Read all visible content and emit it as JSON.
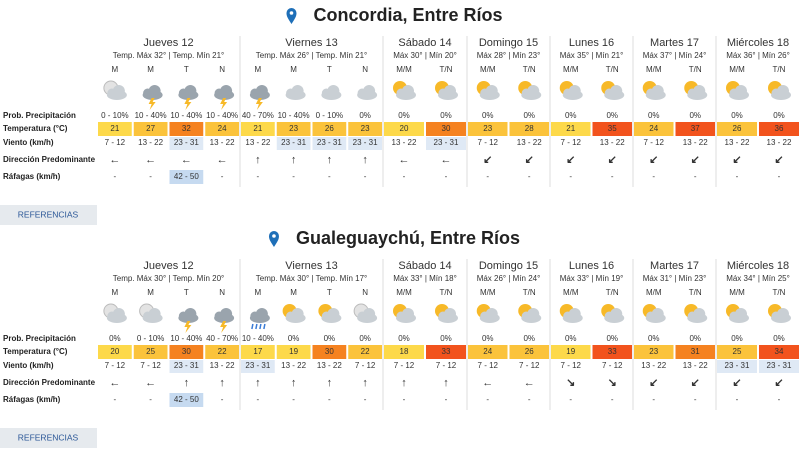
{
  "locations": [
    {
      "name": "Concordia, Entre Ríos",
      "row_labels": [
        "Prob. Precipitación",
        "Temperatura (°C)",
        "Viento (km/h)",
        "Dirección Predominante",
        "Ráfagas (km/h)"
      ],
      "days": [
        {
          "name": "Jueves 12",
          "temps": "Temp. Máx 32° | Temp. Mín 21°",
          "periods": [
            {
              "label": "M",
              "precip": "0 - 10%",
              "temp": 21,
              "wind": "7 - 12",
              "direction": "←",
              "gust": "-"
            },
            {
              "label": "M",
              "precip": "10 - 40%",
              "temp": 27,
              "wind": "13 - 22",
              "direction": "←",
              "gust": "-"
            },
            {
              "label": "T",
              "precip": "10 - 40%",
              "temp": 32,
              "wind": "23 - 31",
              "direction": "←",
              "gust": "42 - 50"
            },
            {
              "label": "N",
              "precip": "10 - 40%",
              "temp": 24,
              "wind": "13 - 22",
              "direction": "←",
              "gust": "-"
            }
          ]
        },
        {
          "name": "Viernes 13",
          "temps": "Temp. Máx 26° | Temp. Mín 21°",
          "periods": [
            {
              "label": "M",
              "precip": "40 - 70%",
              "temp": 21,
              "wind": "13 - 22",
              "direction": "↑",
              "gust": "-"
            },
            {
              "label": "M",
              "precip": "10 - 40%",
              "temp": 23,
              "wind": "23 - 31",
              "direction": "↑",
              "gust": "-"
            },
            {
              "label": "T",
              "precip": "0 - 10%",
              "temp": 26,
              "wind": "23 - 31",
              "direction": "↑",
              "gust": "-"
            },
            {
              "label": "N",
              "precip": "0%",
              "temp": 23,
              "wind": "23 - 31",
              "direction": "↑",
              "gust": "-"
            }
          ]
        },
        {
          "name": "Sábado 14",
          "temps": "Máx 30° | Mín 20°",
          "periods": [
            {
              "label": "M/M",
              "precip": "0%",
              "temp": 20,
              "wind": "13 - 22",
              "direction": "←",
              "gust": "-"
            },
            {
              "label": "T/N",
              "precip": "0%",
              "temp": 30,
              "wind": "23 - 31",
              "direction": "←",
              "gust": "-"
            }
          ]
        },
        {
          "name": "Domingo 15",
          "temps": "Máx 28° | Mín 23°",
          "periods": [
            {
              "label": "M/M",
              "precip": "0%",
              "temp": 23,
              "wind": "7 - 12",
              "direction": "↙",
              "gust": "-"
            },
            {
              "label": "T/N",
              "precip": "0%",
              "temp": 28,
              "wind": "13 - 22",
              "direction": "↙",
              "gust": "-"
            }
          ]
        },
        {
          "name": "Lunes 16",
          "temps": "Máx 35° | Mín 21°",
          "periods": [
            {
              "label": "M/M",
              "precip": "0%",
              "temp": 21,
              "wind": "7 - 12",
              "direction": "↙",
              "gust": "-"
            },
            {
              "label": "T/N",
              "precip": "0%",
              "temp": 35,
              "wind": "13 - 22",
              "direction": "↙",
              "gust": "-"
            }
          ]
        },
        {
          "name": "Martes 17",
          "temps": "Máx 37° | Mín 24°",
          "periods": [
            {
              "label": "M/M",
              "precip": "0%",
              "temp": 24,
              "wind": "7 - 12",
              "direction": "↙",
              "gust": "-"
            },
            {
              "label": "T/N",
              "precip": "0%",
              "temp": 37,
              "wind": "13 - 22",
              "direction": "↙",
              "gust": "-"
            }
          ]
        },
        {
          "name": "Miércoles 18",
          "temps": "Máx 36° | Mín 26°",
          "periods": [
            {
              "label": "M/M",
              "precip": "0%",
              "temp": 26,
              "wind": "13 - 22",
              "direction": "↙",
              "gust": "-"
            },
            {
              "label": "T/N",
              "precip": "0%",
              "temp": 36,
              "wind": "13 - 22",
              "direction": "↙",
              "gust": "-"
            }
          ]
        }
      ],
      "references": "REFERENCIAS"
    },
    {
      "name": "Gualeguaychú, Entre Ríos",
      "row_labels": [
        "Prob. Precipitación",
        "Temperatura (°C)",
        "Viento (km/h)",
        "Dirección Predominante",
        "Ráfagas (km/h)"
      ],
      "days": [
        {
          "name": "Jueves 12",
          "temps": "Temp. Máx 30° | Temp. Mín 20°",
          "periods": [
            {
              "label": "M",
              "precip": "0%",
              "temp": 20,
              "wind": "7 - 12",
              "direction": "←",
              "gust": "-"
            },
            {
              "label": "M",
              "precip": "0 - 10%",
              "temp": 25,
              "wind": "7 - 12",
              "direction": "←",
              "gust": "-"
            },
            {
              "label": "T",
              "precip": "10 - 40%",
              "temp": 30,
              "wind": "23 - 31",
              "direction": "↑",
              "gust": "42 - 50"
            },
            {
              "label": "N",
              "precip": "40 - 70%",
              "temp": 22,
              "wind": "13 - 22",
              "direction": "↑",
              "gust": "-"
            }
          ]
        },
        {
          "name": "Viernes 13",
          "temps": "Temp. Máx 30° | Temp. Mín 17°",
          "periods": [
            {
              "label": "M",
              "precip": "10 - 40%",
              "temp": 17,
              "wind": "23 - 31",
              "direction": "↑",
              "gust": "-"
            },
            {
              "label": "M",
              "precip": "0%",
              "temp": 19,
              "wind": "13 - 22",
              "direction": "↑",
              "gust": "-"
            },
            {
              "label": "T",
              "precip": "0%",
              "temp": 30,
              "wind": "13 - 22",
              "direction": "↑",
              "gust": "-"
            },
            {
              "label": "N",
              "precip": "0%",
              "temp": 22,
              "wind": "7 - 12",
              "direction": "↑",
              "gust": "-"
            }
          ]
        },
        {
          "name": "Sábado 14",
          "temps": "Máx 33° | Mín 18°",
          "periods": [
            {
              "label": "M/M",
              "precip": "0%",
              "temp": 18,
              "wind": "7 - 12",
              "direction": "↑",
              "gust": "-"
            },
            {
              "label": "T/N",
              "precip": "0%",
              "temp": 33,
              "wind": "7 - 12",
              "direction": "↑",
              "gust": "-"
            }
          ]
        },
        {
          "name": "Domingo 15",
          "temps": "Máx 26° | Mín 24°",
          "periods": [
            {
              "label": "M/M",
              "precip": "0%",
              "temp": 24,
              "wind": "7 - 12",
              "direction": "←",
              "gust": "-"
            },
            {
              "label": "T/N",
              "precip": "0%",
              "temp": 26,
              "wind": "7 - 12",
              "direction": "←",
              "gust": "-"
            }
          ]
        },
        {
          "name": "Lunes 16",
          "temps": "Máx 33° | Mín 19°",
          "periods": [
            {
              "label": "M/M",
              "precip": "0%",
              "temp": 19,
              "wind": "7 - 12",
              "direction": "↘",
              "gust": "-"
            },
            {
              "label": "T/N",
              "precip": "0%",
              "temp": 33,
              "wind": "7 - 12",
              "direction": "↘",
              "gust": "-"
            }
          ]
        },
        {
          "name": "Martes 17",
          "temps": "Máx 31° | Mín 23°",
          "periods": [
            {
              "label": "M/M",
              "precip": "0%",
              "temp": 23,
              "wind": "13 - 22",
              "direction": "↙",
              "gust": "-"
            },
            {
              "label": "T/N",
              "precip": "0%",
              "temp": 31,
              "wind": "13 - 22",
              "direction": "↙",
              "gust": "-"
            }
          ]
        },
        {
          "name": "Miércoles 18",
          "temps": "Máx 34° | Mín 25°",
          "periods": [
            {
              "label": "M/M",
              "precip": "0%",
              "temp": 25,
              "wind": "23 - 31",
              "direction": "↙",
              "gust": "-"
            },
            {
              "label": "T/N",
              "precip": "0%",
              "temp": 34,
              "wind": "23 - 31",
              "direction": "↙",
              "gust": "-"
            }
          ]
        }
      ],
      "references": "REFERENCIAS"
    }
  ]
}
